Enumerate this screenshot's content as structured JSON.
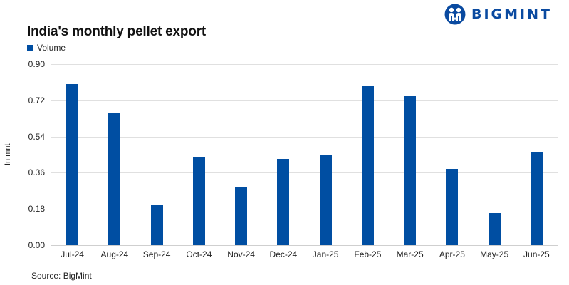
{
  "logo": {
    "text": "BIGMINT",
    "icon": "bigmint-people-icon",
    "color": "#0a4aa0"
  },
  "title": "India's monthly pellet export",
  "legend": {
    "label": "Volume",
    "color": "#004ea2"
  },
  "ylabel": "In mnt",
  "source": "Source: BigMint",
  "yticks": [
    "0.00",
    "0.18",
    "0.36",
    "0.54",
    "0.72",
    "0.90"
  ],
  "chart_data": {
    "type": "bar",
    "title": "India's monthly pellet export",
    "xlabel": "",
    "ylabel": "In mnt",
    "ylim": [
      0,
      0.9
    ],
    "yticks": [
      0,
      0.18,
      0.36,
      0.54,
      0.72,
      0.9
    ],
    "grid": true,
    "legend_position": "top-left",
    "categories": [
      "Jul-24",
      "Aug-24",
      "Sep-24",
      "Oct-24",
      "Nov-24",
      "Dec-24",
      "Jan-25",
      "Feb-25",
      "Mar-25",
      "Apr-25",
      "May-25",
      "Jun-25"
    ],
    "series": [
      {
        "name": "Volume",
        "color": "#004ea2",
        "values": [
          0.8,
          0.66,
          0.2,
          0.44,
          0.29,
          0.43,
          0.45,
          0.79,
          0.74,
          0.38,
          0.16,
          0.46
        ]
      }
    ],
    "annotations": [
      "Source: BigMint"
    ]
  }
}
